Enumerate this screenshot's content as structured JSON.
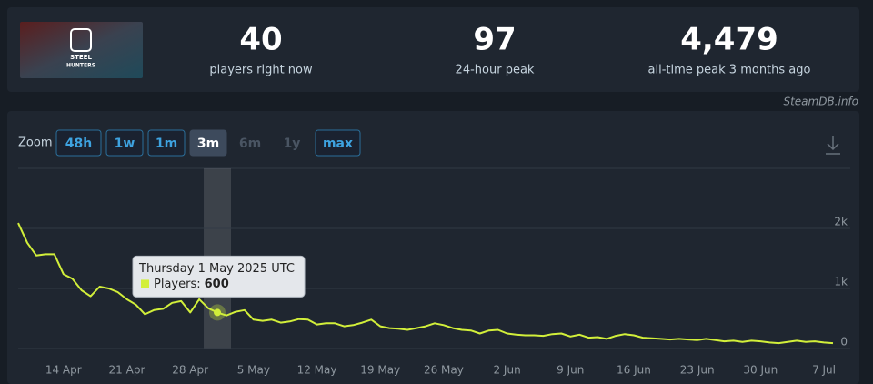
{
  "header": {
    "image_text": [
      "STEEL",
      "HUNTERS"
    ],
    "stats": [
      {
        "value": "40",
        "label": "players right now"
      },
      {
        "value": "97",
        "label": "24-hour peak"
      },
      {
        "value": "4,479",
        "label": "all-time peak 3 months ago"
      }
    ]
  },
  "credit": "SteamDB.info",
  "zoom": {
    "label": "Zoom",
    "options": [
      "48h",
      "1w",
      "1m",
      "3m",
      "6m",
      "1y",
      "max"
    ],
    "active": "3m",
    "disabled": [
      "6m",
      "1y"
    ]
  },
  "chart_data": {
    "type": "line",
    "categories": [
      null,
      null,
      null,
      null,
      null,
      "14 Apr",
      null,
      null,
      null,
      null,
      null,
      null,
      "21 Apr",
      null,
      null,
      null,
      null,
      null,
      null,
      "28 Apr",
      null,
      null,
      null,
      null,
      null,
      null,
      "5 May",
      null,
      null,
      null,
      null,
      null,
      null,
      "12 May",
      null,
      null,
      null,
      null,
      null,
      null,
      "19 May",
      null,
      null,
      null,
      null,
      null,
      null,
      "26 May",
      null,
      null,
      null,
      null,
      null,
      null,
      "2 Jun",
      null,
      null,
      null,
      null,
      null,
      null,
      "9 Jun",
      null,
      null,
      null,
      null,
      null,
      null,
      "16 Jun",
      null,
      null,
      null,
      null,
      null,
      null,
      "23 Jun",
      null,
      null,
      null,
      null,
      null,
      null,
      "30 Jun",
      null,
      null,
      null,
      null,
      null,
      null,
      "7 Jul",
      null
    ],
    "series": [
      {
        "color": "#d2ef3a",
        "values": [
          2090,
          1760,
          1550,
          1570,
          1570,
          1240,
          1160,
          970,
          870,
          1030,
          1000,
          940,
          820,
          730,
          570,
          640,
          660,
          760,
          790,
          600,
          820,
          670,
          600,
          550,
          610,
          640,
          480,
          460,
          480,
          430,
          450,
          490,
          480,
          400,
          420,
          420,
          370,
          390,
          430,
          480,
          370,
          340,
          330,
          310,
          340,
          370,
          420,
          390,
          340,
          310,
          300,
          250,
          300,
          310,
          250,
          230,
          220,
          220,
          210,
          240,
          250,
          200,
          230,
          180,
          190,
          160,
          210,
          240,
          220,
          180,
          170,
          160,
          150,
          160,
          150,
          140,
          160,
          140,
          120,
          130,
          110,
          130,
          120,
          100,
          90,
          110,
          130,
          110,
          120,
          100,
          90
        ]
      }
    ],
    "ylim": [
      0,
      3000
    ],
    "yticks": [
      0,
      {
        "value": 1000,
        "label": "1k"
      },
      {
        "value": 2000,
        "label": "2k"
      }
    ],
    "grid": true,
    "tooltip": {
      "title": "Thursday 1 May 2025 UTC",
      "label": "Players:"
    }
  }
}
